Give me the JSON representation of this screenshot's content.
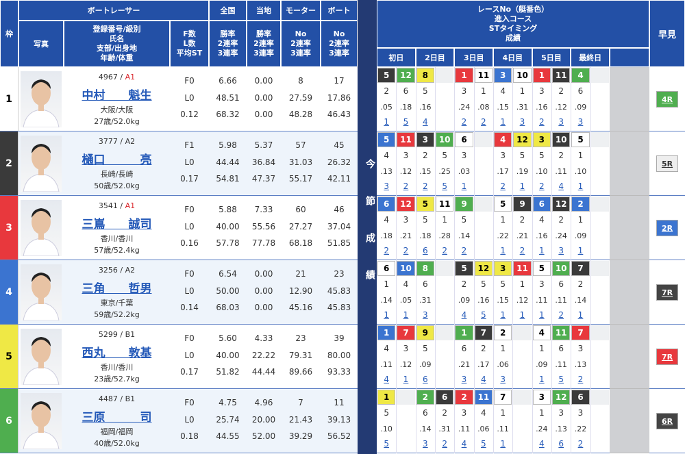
{
  "header": {
    "frame": "枠",
    "photo": "写真",
    "racer": "ボートレーサー",
    "info": [
      "登録番号/級別",
      "氏名",
      "支部/出身地",
      "年齢/体重"
    ],
    "fl": [
      "F数",
      "L数",
      "平均ST"
    ],
    "national": {
      "title": "全国",
      "sub": [
        "勝率",
        "2連率",
        "3連率"
      ]
    },
    "local": {
      "title": "当地",
      "sub": [
        "勝率",
        "2連率",
        "3連率"
      ]
    },
    "motor": {
      "title": "モーター",
      "sub": [
        "No",
        "2連率",
        "3連率"
      ]
    },
    "boat": {
      "title": "ボート",
      "sub": [
        "No",
        "2連率",
        "3連率"
      ]
    },
    "race": [
      "レースNo（艇番色）",
      "進入コース",
      "STタイミング",
      "成績"
    ],
    "days": [
      "初日",
      "2日目",
      "3日目",
      "4日目",
      "5日目",
      "最終日"
    ],
    "side": "今節成績",
    "quick": "早見"
  },
  "racers": [
    {
      "frame": 1,
      "frame_color": "#ffffff",
      "reg": "4967 /",
      "class": "A1",
      "class_color": "#d9262c",
      "name": "中村　　魁生",
      "branch": "大阪/大阪",
      "age_weight": "27歳/52.0kg",
      "f": "F0",
      "l": "L0",
      "st_avg": "0.12",
      "national": [
        "6.66",
        "48.51",
        "68.32"
      ],
      "local": [
        "0.00",
        "0.00",
        "0.00"
      ],
      "motor": [
        "8",
        "27.59",
        "48.28"
      ],
      "boat": [
        "17",
        "17.86",
        "46.43"
      ],
      "quick": "4R",
      "quick_color": "#4fae4f",
      "races": [
        {
          "race": 5,
          "color": "#3a3a3a",
          "course": 2,
          "st": ".05",
          "result": 1
        },
        {
          "race": 12,
          "color": "#4fae4f",
          "course": 6,
          "st": ".18",
          "result": 5
        },
        {
          "race": 8,
          "color": "#efe845",
          "course": 5,
          "st": ".16",
          "result": 4
        },
        null,
        {
          "race": 1,
          "color": "#e8383d",
          "course": 3,
          "st": ".24",
          "result": 2
        },
        {
          "race": 11,
          "color": "#ffffff",
          "course": 1,
          "st": ".08",
          "result": 2
        },
        {
          "race": 3,
          "color": "#3b74d0",
          "course": 4,
          "st": ".15",
          "result": 1
        },
        {
          "race": 10,
          "color": "#ffffff",
          "course": 1,
          "st": ".31",
          "result": 3
        },
        {
          "race": 1,
          "color": "#e8383d",
          "course": 3,
          "st": ".16",
          "result": 2
        },
        {
          "race": 11,
          "color": "#3a3a3a",
          "course": 2,
          "st": ".12",
          "result": 3
        },
        {
          "race": 4,
          "color": "#4fae4f",
          "course": 6,
          "st": ".09",
          "result": 3
        },
        null
      ]
    },
    {
      "frame": 2,
      "frame_color": "#3a3a3a",
      "reg": "3777 /",
      "class": "A2",
      "class_color": "#333333",
      "name": "樋口　　　亮",
      "branch": "長崎/長崎",
      "age_weight": "50歳/52.0kg",
      "f": "F1",
      "l": "L0",
      "st_avg": "0.17",
      "national": [
        "5.98",
        "44.44",
        "54.81"
      ],
      "local": [
        "5.37",
        "36.84",
        "47.37"
      ],
      "motor": [
        "57",
        "31.03",
        "55.17"
      ],
      "boat": [
        "45",
        "26.32",
        "42.11"
      ],
      "quick": "5R",
      "quick_color": "#eeeeee",
      "races": [
        {
          "race": 5,
          "color": "#3b74d0",
          "course": 4,
          "st": ".13",
          "result": 3
        },
        {
          "race": 11,
          "color": "#e8383d",
          "course": 3,
          "st": ".12",
          "result": 2
        },
        {
          "race": 3,
          "color": "#3a3a3a",
          "course": 2,
          "st": ".15",
          "result": 2
        },
        {
          "race": 10,
          "color": "#4fae4f",
          "course": 5,
          "st": ".25",
          "result": 5
        },
        {
          "race": 6,
          "color": "#ffffff",
          "course": 3,
          "st": ".03",
          "result": 1
        },
        null,
        {
          "race": 4,
          "color": "#e8383d",
          "course": 3,
          "st": ".17",
          "result": 2
        },
        {
          "race": 12,
          "color": "#efe845",
          "course": 5,
          "st": ".19",
          "result": 1
        },
        {
          "race": 3,
          "color": "#efe845",
          "course": 5,
          "st": ".10",
          "result": 2
        },
        {
          "race": 10,
          "color": "#3a3a3a",
          "course": 2,
          "st": ".11",
          "result": 4
        },
        {
          "race": 5,
          "color": "#ffffff",
          "course": 1,
          "st": ".10",
          "result": 1
        },
        null
      ]
    },
    {
      "frame": 3,
      "frame_color": "#e8383d",
      "reg": "3541 /",
      "class": "A1",
      "class_color": "#d9262c",
      "name": "三嶌　　誠司",
      "branch": "香川/香川",
      "age_weight": "57歳/52.4kg",
      "f": "F0",
      "l": "L0",
      "st_avg": "0.16",
      "national": [
        "5.88",
        "40.00",
        "57.78"
      ],
      "local": [
        "7.33",
        "55.56",
        "77.78"
      ],
      "motor": [
        "60",
        "27.27",
        "68.18"
      ],
      "boat": [
        "46",
        "37.04",
        "51.85"
      ],
      "quick": "2R",
      "quick_color": "#3b74d0",
      "races": [
        {
          "race": 6,
          "color": "#3b74d0",
          "course": 4,
          "st": ".18",
          "result": 2
        },
        {
          "race": 12,
          "color": "#e8383d",
          "course": 3,
          "st": ".21",
          "result": 2
        },
        {
          "race": 5,
          "color": "#efe845",
          "course": 5,
          "st": ".18",
          "result": 6
        },
        {
          "race": 11,
          "color": "#ffffff",
          "course": 1,
          "st": ".28",
          "result": 2
        },
        {
          "race": 9,
          "color": "#4fae4f",
          "course": 5,
          "st": ".14",
          "result": 2
        },
        null,
        {
          "race": 5,
          "color": "#ffffff",
          "course": 1,
          "st": ".22",
          "result": 1
        },
        {
          "race": 9,
          "color": "#3a3a3a",
          "course": 2,
          "st": ".21",
          "result": 2
        },
        {
          "race": 6,
          "color": "#3b74d0",
          "course": 4,
          "st": ".16",
          "result": 1
        },
        {
          "race": 12,
          "color": "#3a3a3a",
          "course": 2,
          "st": ".24",
          "result": 3
        },
        {
          "race": 2,
          "color": "#3b74d0",
          "course": 1,
          "st": ".09",
          "result": 1
        },
        null
      ]
    },
    {
      "frame": 4,
      "frame_color": "#3b74d0",
      "reg": "3256 /",
      "class": "A2",
      "class_color": "#333333",
      "name": "三角　　哲男",
      "branch": "東京/千葉",
      "age_weight": "59歳/52.2kg",
      "f": "F0",
      "l": "L0",
      "st_avg": "0.14",
      "national": [
        "6.54",
        "50.00",
        "68.03"
      ],
      "local": [
        "0.00",
        "0.00",
        "0.00"
      ],
      "motor": [
        "21",
        "12.90",
        "45.16"
      ],
      "boat": [
        "23",
        "45.83",
        "45.83"
      ],
      "quick": "7R",
      "quick_color": "#444444",
      "races": [
        {
          "race": 6,
          "color": "#ffffff",
          "course": 1,
          "st": ".14",
          "result": 1
        },
        {
          "race": 10,
          "color": "#3b74d0",
          "course": 4,
          "st": ".05",
          "result": 1
        },
        {
          "race": 8,
          "color": "#4fae4f",
          "course": 6,
          "st": ".31",
          "result": 3
        },
        null,
        {
          "race": 5,
          "color": "#3a3a3a",
          "course": 2,
          "st": ".09",
          "result": 4
        },
        {
          "race": 12,
          "color": "#efe845",
          "course": 5,
          "st": ".16",
          "result": 5
        },
        {
          "race": 3,
          "color": "#efe845",
          "course": 5,
          "st": ".15",
          "result": 1
        },
        {
          "race": 11,
          "color": "#e8383d",
          "course": 1,
          "st": ".12",
          "result": 1
        },
        {
          "race": 5,
          "color": "#ffffff",
          "course": 3,
          "st": ".11",
          "result": 1
        },
        {
          "race": 10,
          "color": "#4fae4f",
          "course": 6,
          "st": ".11",
          "result": 2
        },
        {
          "race": 7,
          "color": "#3a3a3a",
          "course": 2,
          "st": ".14",
          "result": 1
        },
        null
      ]
    },
    {
      "frame": 5,
      "frame_color": "#efe845",
      "reg": "5299 /",
      "class": "B1",
      "class_color": "#333333",
      "name": "西丸　　敦基",
      "branch": "香川/香川",
      "age_weight": "23歳/52.7kg",
      "f": "F0",
      "l": "L0",
      "st_avg": "0.17",
      "national": [
        "5.60",
        "40.00",
        "51.82"
      ],
      "local": [
        "4.33",
        "22.22",
        "44.44"
      ],
      "motor": [
        "23",
        "79.31",
        "89.66"
      ],
      "boat": [
        "39",
        "80.00",
        "93.33"
      ],
      "quick": "7R",
      "quick_color": "#e8383d",
      "races": [
        {
          "race": 1,
          "color": "#3b74d0",
          "course": 4,
          "st": ".11",
          "result": 4
        },
        {
          "race": 7,
          "color": "#e8383d",
          "course": 3,
          "st": ".12",
          "result": 1
        },
        {
          "race": 9,
          "color": "#efe845",
          "course": 5,
          "st": ".09",
          "result": 6
        },
        null,
        {
          "race": 1,
          "color": "#4fae4f",
          "course": 6,
          "st": ".21",
          "result": 3
        },
        {
          "race": 7,
          "color": "#3a3a3a",
          "course": 2,
          "st": ".17",
          "result": 4
        },
        {
          "race": 2,
          "color": "#ffffff",
          "course": 1,
          "st": ".06",
          "result": 3
        },
        null,
        {
          "race": 4,
          "color": "#ffffff",
          "course": 1,
          "st": ".09",
          "result": 1
        },
        {
          "race": 11,
          "color": "#4fae4f",
          "course": 6,
          "st": ".11",
          "result": 5
        },
        {
          "race": 7,
          "color": "#e8383d",
          "course": 3,
          "st": ".13",
          "result": 2
        },
        null
      ]
    },
    {
      "frame": 6,
      "frame_color": "#4fae4f",
      "reg": "4487 /",
      "class": "B1",
      "class_color": "#333333",
      "name": "三原　　　司",
      "branch": "福岡/福岡",
      "age_weight": "40歳/52.0kg",
      "f": "F0",
      "l": "L0",
      "st_avg": "0.18",
      "national": [
        "4.75",
        "25.74",
        "44.55"
      ],
      "local": [
        "4.96",
        "20.00",
        "52.00"
      ],
      "motor": [
        "7",
        "21.43",
        "39.29"
      ],
      "boat": [
        "11",
        "39.13",
        "56.52"
      ],
      "quick": "6R",
      "quick_color": "#444444",
      "races": [
        {
          "race": 1,
          "color": "#efe845",
          "course": 5,
          "st": ".10",
          "result": 5
        },
        null,
        {
          "race": 2,
          "color": "#4fae4f",
          "course": 6,
          "st": ".14",
          "result": 3
        },
        {
          "race": 6,
          "color": "#3a3a3a",
          "course": 2,
          "st": ".31",
          "result": 2
        },
        {
          "race": 2,
          "color": "#e8383d",
          "course": 3,
          "st": ".11",
          "result": 4
        },
        {
          "race": 11,
          "color": "#3b74d0",
          "course": 4,
          "st": ".06",
          "result": 5
        },
        {
          "race": 7,
          "color": "#ffffff",
          "course": 1,
          "st": ".11",
          "result": 1
        },
        null,
        {
          "race": 3,
          "color": "#ffffff",
          "course": 1,
          "st": ".24",
          "result": 4
        },
        {
          "race": 12,
          "color": "#4fae4f",
          "course": 3,
          "st": ".13",
          "result": 6
        },
        {
          "race": 6,
          "color": "#3a3a3a",
          "course": 3,
          "st": ".22",
          "result": 2
        },
        null
      ]
    }
  ]
}
